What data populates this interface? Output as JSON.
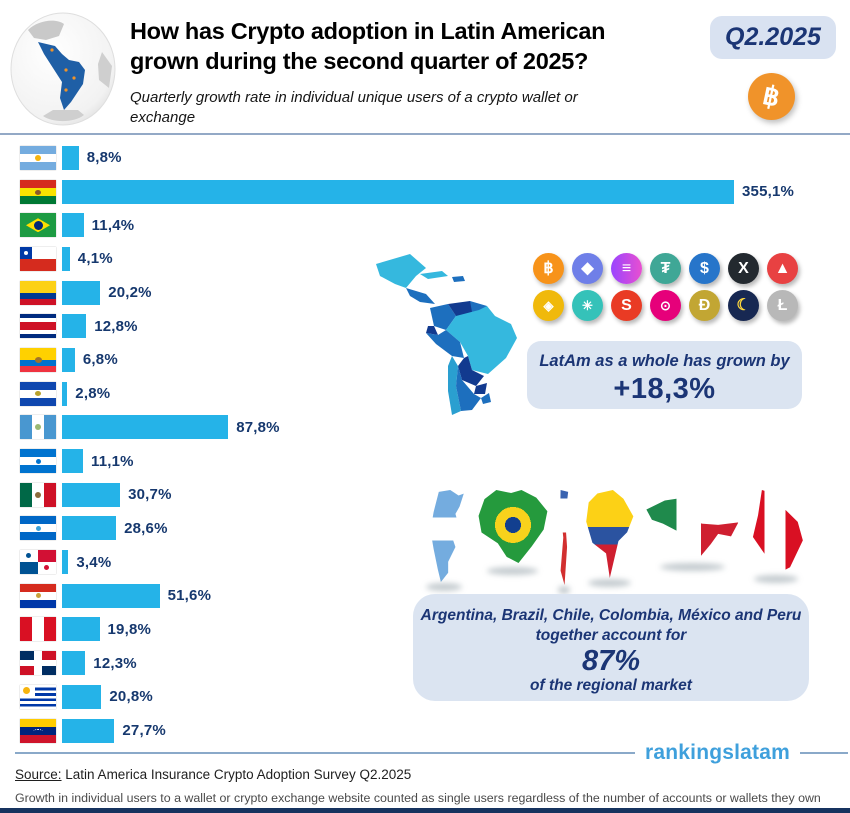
{
  "header": {
    "title_line1": "How has Crypto adoption in Latin American",
    "title_line2": "grown during the second quarter of 2025?",
    "subtitle": "Quarterly growth rate in individual unique users of a crypto wallet or exchange",
    "badge": "Q2.2025",
    "btc_glyph": "฿"
  },
  "chart_data": {
    "type": "bar",
    "orientation": "horizontal",
    "title": "Quarterly growth rate in individual unique users of a crypto wallet or exchange",
    "unit": "%",
    "xlim": [
      0,
      355.1
    ],
    "bar_color": "#25b3e8",
    "categories": [
      "Argentina",
      "Bolivia",
      "Brazil",
      "Chile",
      "Colombia",
      "Costa Rica",
      "Ecuador",
      "El Salvador",
      "Guatemala",
      "Honduras",
      "México",
      "Nicaragua",
      "Panamá",
      "Paraguay",
      "Perú",
      "República Dominicana",
      "Uruguay",
      "Venezuela"
    ],
    "codes": [
      "ar",
      "bo",
      "br",
      "cl",
      "co",
      "cr",
      "ec",
      "sv",
      "gt",
      "hn",
      "mx",
      "ni",
      "pa",
      "py",
      "pe",
      "do",
      "uy",
      "ve"
    ],
    "values": [
      8.8,
      355.1,
      11.4,
      4.1,
      20.2,
      12.8,
      6.8,
      2.8,
      87.8,
      11.1,
      30.7,
      28.6,
      3.4,
      51.6,
      19.8,
      12.3,
      20.8,
      27.7
    ],
    "labels": [
      "8,8%",
      "355,1%",
      "11,4%",
      "4,1%",
      "20,2%",
      "12,8%",
      "6,8%",
      "2,8%",
      "87,8%",
      "11,1%",
      "30,7%",
      "28,6%",
      "3,4%",
      "51,6%",
      "19,8%",
      "12,3%",
      "20,8%",
      "27,7%"
    ]
  },
  "coins": [
    {
      "name": "bitcoin-icon",
      "glyph": "฿",
      "color": "#f7931a"
    },
    {
      "name": "ethereum-icon",
      "glyph": "◆",
      "color": "#6f7fe8"
    },
    {
      "name": "solana-icon",
      "glyph": "≡",
      "color": "linear-gradient(90deg,#9945ff,#e94fd0)"
    },
    {
      "name": "tether-icon",
      "glyph": "₮",
      "color": "#3fa796"
    },
    {
      "name": "usdc-icon",
      "glyph": "$",
      "color": "#2775ca"
    },
    {
      "name": "xrp-icon",
      "glyph": "X",
      "color": "#23292f"
    },
    {
      "name": "avalanche-icon",
      "glyph": "▲",
      "color": "#e84142"
    },
    {
      "name": "bnb-icon",
      "glyph": "◈",
      "color": "#f0b90b"
    },
    {
      "name": "cardano-icon",
      "glyph": "✳",
      "color": "#35c2b9"
    },
    {
      "name": "shiba-inu-icon",
      "glyph": "S",
      "color": "#e93b24"
    },
    {
      "name": "polkadot-icon",
      "glyph": "⊙",
      "color": "#e6007a"
    },
    {
      "name": "dogecoin-icon",
      "glyph": "Ð",
      "color": "#c2a633"
    },
    {
      "name": "terra-luna-icon",
      "glyph": "☾",
      "color": "#172852",
      "glyph_color": "#ffd83d"
    },
    {
      "name": "litecoin-icon",
      "glyph": "Ł",
      "color": "#b8b8b8"
    }
  ],
  "latam_box": {
    "line1": "LatAm as a whole has grown by",
    "value": "+18,3%"
  },
  "top6_box": {
    "line1": "Argentina, Brazil, Chile, Colombia, México and Peru",
    "line2": "together account for",
    "value": "87%",
    "line3": "of the regional market"
  },
  "silhouettes": [
    {
      "name": "Argentina",
      "code": "ar"
    },
    {
      "name": "Brazil",
      "code": "br"
    },
    {
      "name": "Chile",
      "code": "cl"
    },
    {
      "name": "Colombia",
      "code": "co"
    },
    {
      "name": "México",
      "code": "mx"
    },
    {
      "name": "Peru",
      "code": "pe"
    }
  ],
  "footer": {
    "brand": "rankingslatam",
    "source_label": "Source:",
    "source_text": " Latin America Insurance Crypto Adoption Survey Q2.2025",
    "footnote": "Growth in individual users to a wallet or crypto exchange website counted as single users regardless of the number of accounts or wallets they own"
  },
  "colors": {
    "bar": "#25b3e8",
    "navy_text": "#16386e",
    "box_bg": "#dbe4f1",
    "brand_blue": "#3fa0dc",
    "bottom_bar": "#16335f",
    "btc_orange": "#f0932a"
  }
}
